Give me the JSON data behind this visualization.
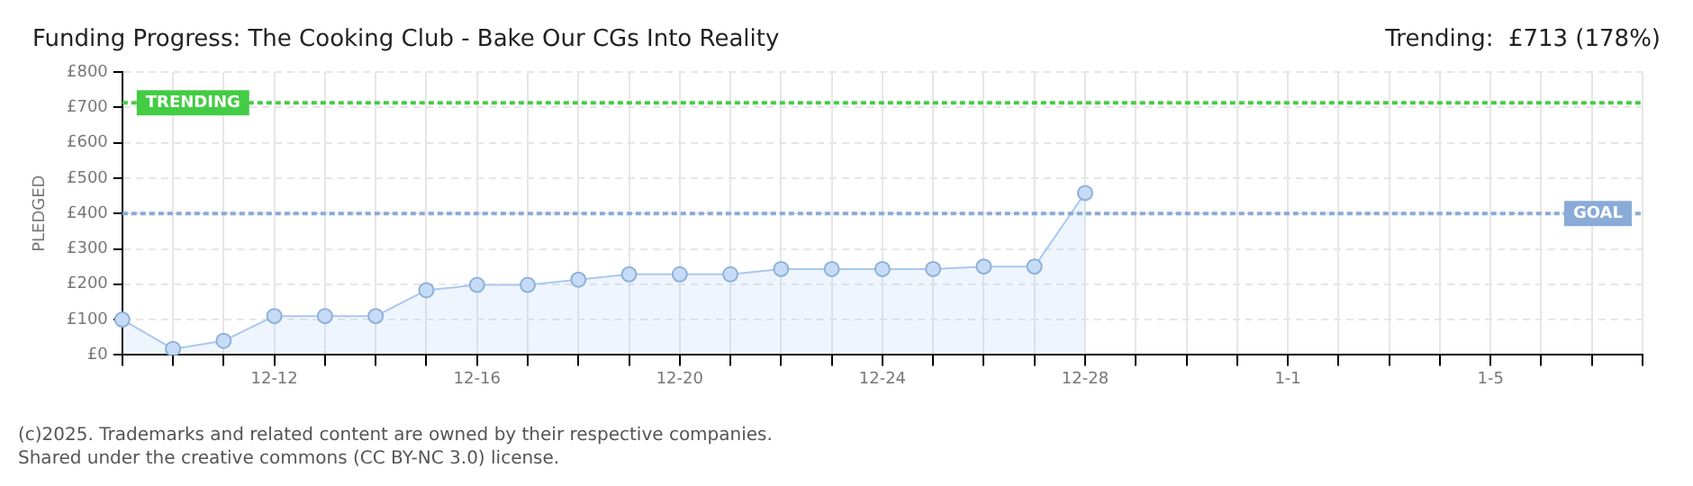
{
  "chart_data": {
    "type": "area",
    "title": "Funding Progress: The Cooking Club - Bake Our CGs Into Reality",
    "subtitle": "Trending:  £713 (178%)",
    "ylabel": "PLEDGED",
    "categories": [
      null,
      null,
      null,
      "12-12",
      null,
      null,
      null,
      "12-16",
      null,
      null,
      null,
      "12-20",
      null,
      null,
      null,
      "12-24",
      null,
      null,
      null,
      "12-28",
      null,
      null,
      null,
      "1-1",
      null,
      null,
      null,
      "1-5",
      null,
      null,
      null
    ],
    "series": [
      {
        "color": "#a9c8ef",
        "values": [
          100,
          17,
          40,
          110,
          110,
          110,
          183,
          198,
          198,
          213,
          228,
          228,
          228,
          243,
          243,
          243,
          243,
          250,
          250,
          458,
          null,
          null,
          null,
          null,
          null,
          null,
          null,
          null,
          null,
          null,
          null
        ]
      }
    ],
    "ylim": [
      0,
      800
    ],
    "yticks": [
      {
        "value": 0,
        "label": "£0"
      },
      {
        "value": 100,
        "label": "£100"
      },
      {
        "value": 200,
        "label": "£200"
      },
      {
        "value": 300,
        "label": "£300"
      },
      {
        "value": 400,
        "label": "£400"
      },
      {
        "value": 500,
        "label": "£500"
      },
      {
        "value": 600,
        "label": "£600"
      },
      {
        "value": 700,
        "label": "£700"
      },
      {
        "value": 800,
        "label": "£800"
      }
    ],
    "ref_lines": [
      {
        "axis": "y",
        "value": 713,
        "label": "TRENDING",
        "color": "#44cc44",
        "line_style": "dotted"
      },
      {
        "axis": "y",
        "value": 400,
        "label": "GOAL",
        "color": "#8aaad8",
        "line_style": "dotted"
      }
    ],
    "annotations": [
      "(c)2025. Trademarks and related content are owned by their respective companies.",
      "Shared under the creative commons (CC BY-NC 3.0) license."
    ],
    "grid": true,
    "legend": false,
    "marker": "circle"
  }
}
